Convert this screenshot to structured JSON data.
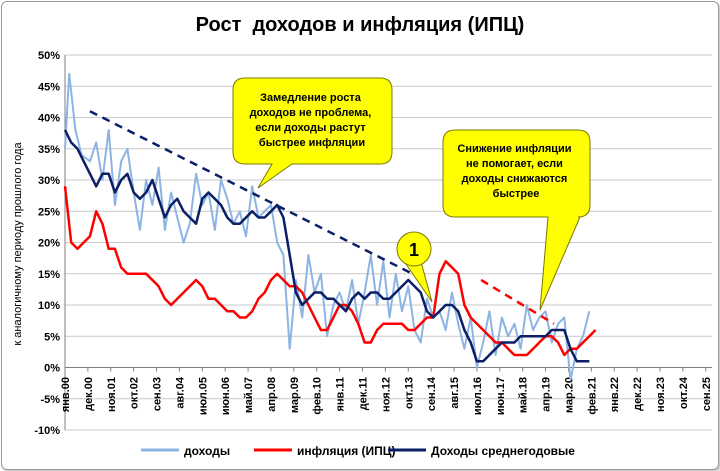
{
  "chart_data": {
    "type": "line",
    "title": "Рост  доходов и инфляция (ИПЦ)",
    "xlabel": "",
    "ylabel": "к аналогичному периоду прошлого года",
    "ylim": [
      -10,
      50
    ],
    "yticks": [
      "50%",
      "45%",
      "40%",
      "35%",
      "30%",
      "25%",
      "20%",
      "15%",
      "10%",
      "5%",
      "0%",
      "-5%",
      "-10%"
    ],
    "ytick_values": [
      50,
      45,
      40,
      35,
      30,
      25,
      20,
      15,
      10,
      5,
      0,
      -5,
      -10
    ],
    "grid": true,
    "xrange": [
      "2000-01",
      "2025-12"
    ],
    "xtick_labels": [
      "янв.00",
      "дек.00",
      "ноя.01",
      "окт.02",
      "сен.03",
      "авг.04",
      "июл.05",
      "июн.06",
      "май.07",
      "апр.08",
      "мар.09",
      "фев.10",
      "янв.11",
      "дек.11",
      "ноя.12",
      "окт.13",
      "сен.14",
      "авг.15",
      "июл.16",
      "июн.17",
      "май.18",
      "апр.19",
      "мар.20",
      "фев.21",
      "янв.22",
      "дек.22",
      "ноя.23",
      "окт.24",
      "сен.25"
    ],
    "xtick_dates": [
      "2000-01",
      "2000-12",
      "2001-11",
      "2002-10",
      "2003-09",
      "2004-08",
      "2005-07",
      "2006-06",
      "2007-05",
      "2008-04",
      "2009-03",
      "2010-02",
      "2011-01",
      "2011-12",
      "2012-11",
      "2013-10",
      "2014-09",
      "2015-08",
      "2016-07",
      "2017-06",
      "2018-05",
      "2019-04",
      "2020-03",
      "2021-02",
      "2022-01",
      "2022-12",
      "2023-11",
      "2024-10",
      "2025-09"
    ],
    "legend_position": "bottom",
    "series": [
      {
        "name": "доходы",
        "color": "#8db4e2",
        "x": [
          "2000-01",
          "2000-03",
          "2000-06",
          "2000-09",
          "2001-01",
          "2001-04",
          "2001-07",
          "2001-10",
          "2002-01",
          "2002-04",
          "2002-07",
          "2002-10",
          "2003-01",
          "2003-04",
          "2003-07",
          "2003-10",
          "2004-01",
          "2004-04",
          "2004-07",
          "2004-10",
          "2005-01",
          "2005-04",
          "2005-07",
          "2005-10",
          "2006-01",
          "2006-04",
          "2006-07",
          "2006-10",
          "2007-01",
          "2007-04",
          "2007-07",
          "2007-10",
          "2008-01",
          "2008-04",
          "2008-07",
          "2008-10",
          "2009-01",
          "2009-04",
          "2009-07",
          "2009-10",
          "2010-01",
          "2010-04",
          "2010-07",
          "2010-10",
          "2011-01",
          "2011-04",
          "2011-07",
          "2011-10",
          "2012-01",
          "2012-04",
          "2012-07",
          "2012-10",
          "2013-01",
          "2013-04",
          "2013-07",
          "2013-10",
          "2014-01",
          "2014-04",
          "2014-07",
          "2014-10",
          "2015-01",
          "2015-04",
          "2015-07",
          "2015-10",
          "2016-01",
          "2016-04",
          "2016-07",
          "2016-10",
          "2017-01",
          "2017-04",
          "2017-07",
          "2017-10",
          "2018-01",
          "2018-04",
          "2018-07",
          "2018-10",
          "2019-01",
          "2019-04",
          "2019-07",
          "2019-10",
          "2020-01",
          "2020-04",
          "2020-07",
          "2020-10",
          "2021-01"
        ],
        "values": [
          35,
          47,
          38,
          34,
          33,
          36,
          30,
          38,
          26,
          33,
          35,
          28,
          22,
          30,
          26,
          32,
          22,
          28,
          24,
          20,
          23,
          31,
          26,
          28,
          22,
          30,
          27,
          23,
          25,
          21,
          29,
          24,
          25,
          26,
          20,
          18,
          3,
          14,
          8,
          18,
          12,
          15,
          5,
          10,
          12,
          9,
          14,
          7,
          12,
          18,
          10,
          17,
          8,
          15,
          9,
          13,
          6,
          4,
          11,
          8,
          9,
          6,
          12,
          7,
          3,
          8,
          0,
          4,
          9,
          2,
          8,
          5,
          7,
          3,
          10,
          6,
          8,
          9,
          4,
          7,
          8,
          -2,
          3,
          5,
          9
        ]
      },
      {
        "name": "инфляция (ИПЦ)",
        "color": "#ff0000",
        "x": [
          "2000-01",
          "2000-04",
          "2000-07",
          "2000-10",
          "2001-01",
          "2001-04",
          "2001-07",
          "2001-10",
          "2002-01",
          "2002-04",
          "2002-07",
          "2002-10",
          "2003-01",
          "2003-04",
          "2003-07",
          "2003-10",
          "2004-01",
          "2004-04",
          "2004-07",
          "2004-10",
          "2005-01",
          "2005-04",
          "2005-07",
          "2005-10",
          "2006-01",
          "2006-04",
          "2006-07",
          "2006-10",
          "2007-01",
          "2007-04",
          "2007-07",
          "2007-10",
          "2008-01",
          "2008-04",
          "2008-07",
          "2008-10",
          "2009-01",
          "2009-04",
          "2009-07",
          "2009-10",
          "2010-01",
          "2010-04",
          "2010-07",
          "2010-10",
          "2011-01",
          "2011-04",
          "2011-07",
          "2011-10",
          "2012-01",
          "2012-04",
          "2012-07",
          "2012-10",
          "2013-01",
          "2013-04",
          "2013-07",
          "2013-10",
          "2014-01",
          "2014-04",
          "2014-07",
          "2014-10",
          "2015-01",
          "2015-04",
          "2015-07",
          "2015-10",
          "2016-01",
          "2016-04",
          "2016-07",
          "2016-10",
          "2017-01",
          "2017-04",
          "2017-07",
          "2017-10",
          "2018-01",
          "2018-04",
          "2018-07",
          "2018-10",
          "2019-01",
          "2019-04",
          "2019-07",
          "2019-10",
          "2020-01",
          "2020-04",
          "2020-07",
          "2020-10",
          "2021-01",
          "2021-04"
        ],
        "values": [
          29,
          20,
          19,
          20,
          21,
          25,
          23,
          19,
          19,
          16,
          15,
          15,
          15,
          15,
          14,
          13,
          11,
          10,
          11,
          12,
          13,
          14,
          13,
          11,
          11,
          10,
          9,
          9,
          8,
          8,
          9,
          11,
          12,
          14,
          15,
          14,
          13,
          13,
          12,
          10,
          8,
          6,
          6,
          8,
          10,
          10,
          9,
          7,
          4,
          4,
          6,
          7,
          7,
          7,
          7,
          6,
          6,
          7,
          8,
          8,
          15,
          17,
          16,
          15,
          10,
          8,
          7,
          6,
          5,
          4,
          4,
          3,
          2,
          2,
          2,
          3,
          4,
          5,
          5,
          4,
          2,
          3,
          3,
          4,
          5,
          6
        ]
      },
      {
        "name": "Доходы среднегодовые",
        "color": "#0b1f66",
        "x": [
          "2000-01",
          "2000-04",
          "2000-07",
          "2000-10",
          "2001-01",
          "2001-04",
          "2001-07",
          "2001-10",
          "2002-01",
          "2002-04",
          "2002-07",
          "2002-10",
          "2003-01",
          "2003-04",
          "2003-07",
          "2003-10",
          "2004-01",
          "2004-04",
          "2004-07",
          "2004-10",
          "2005-01",
          "2005-04",
          "2005-07",
          "2005-10",
          "2006-01",
          "2006-04",
          "2006-07",
          "2006-10",
          "2007-01",
          "2007-04",
          "2007-07",
          "2007-10",
          "2008-01",
          "2008-04",
          "2008-07",
          "2008-10",
          "2009-01",
          "2009-04",
          "2009-07",
          "2009-10",
          "2010-01",
          "2010-04",
          "2010-07",
          "2010-10",
          "2011-01",
          "2011-04",
          "2011-07",
          "2011-10",
          "2012-01",
          "2012-04",
          "2012-07",
          "2012-10",
          "2013-01",
          "2013-04",
          "2013-07",
          "2013-10",
          "2014-01",
          "2014-04",
          "2014-07",
          "2014-10",
          "2015-01",
          "2015-04",
          "2015-07",
          "2015-10",
          "2016-01",
          "2016-04",
          "2016-07",
          "2016-10",
          "2017-01",
          "2017-04",
          "2017-07",
          "2017-10",
          "2018-01",
          "2018-04",
          "2018-07",
          "2018-10",
          "2019-01",
          "2019-04",
          "2019-07",
          "2019-10",
          "2020-01",
          "2020-04",
          "2020-07",
          "2020-10",
          "2021-01"
        ],
        "values": [
          38,
          36,
          35,
          33,
          31,
          29,
          31,
          31,
          28,
          30,
          31,
          28,
          27,
          28,
          30,
          27,
          24,
          26,
          27,
          25,
          24,
          23,
          27,
          28,
          27,
          26,
          24,
          23,
          23,
          24,
          25,
          24,
          24,
          25,
          26,
          24,
          18,
          12,
          10,
          11,
          12,
          12,
          11,
          11,
          10,
          9,
          11,
          12,
          11,
          12,
          12,
          11,
          11,
          12,
          13,
          14,
          13,
          12,
          9,
          8,
          9,
          10,
          10,
          9,
          6,
          4,
          1,
          1,
          2,
          3,
          4,
          4,
          4,
          5,
          5,
          5,
          5,
          5,
          6,
          6,
          6,
          3,
          1,
          1,
          1
        ]
      }
    ],
    "trend_lines": [
      {
        "color": "#0b1f66",
        "style": "dashed",
        "from": [
          "2001-01",
          41
        ],
        "to": [
          "2013-12",
          15
        ]
      },
      {
        "color": "#ff0000",
        "style": "dashed",
        "from": [
          "2016-09",
          14
        ],
        "to": [
          "2019-08",
          7
        ]
      }
    ],
    "annotations": [
      {
        "text": "Замедление роста доходов не проблема, если доходы растут быстрее инфляции",
        "fill": "#ffff00"
      },
      {
        "text": "Снижение инфляции не помогает, если доходы снижаются быстрее",
        "fill": "#ffff00"
      },
      {
        "text": "1",
        "fill": "#ffff00"
      }
    ]
  }
}
